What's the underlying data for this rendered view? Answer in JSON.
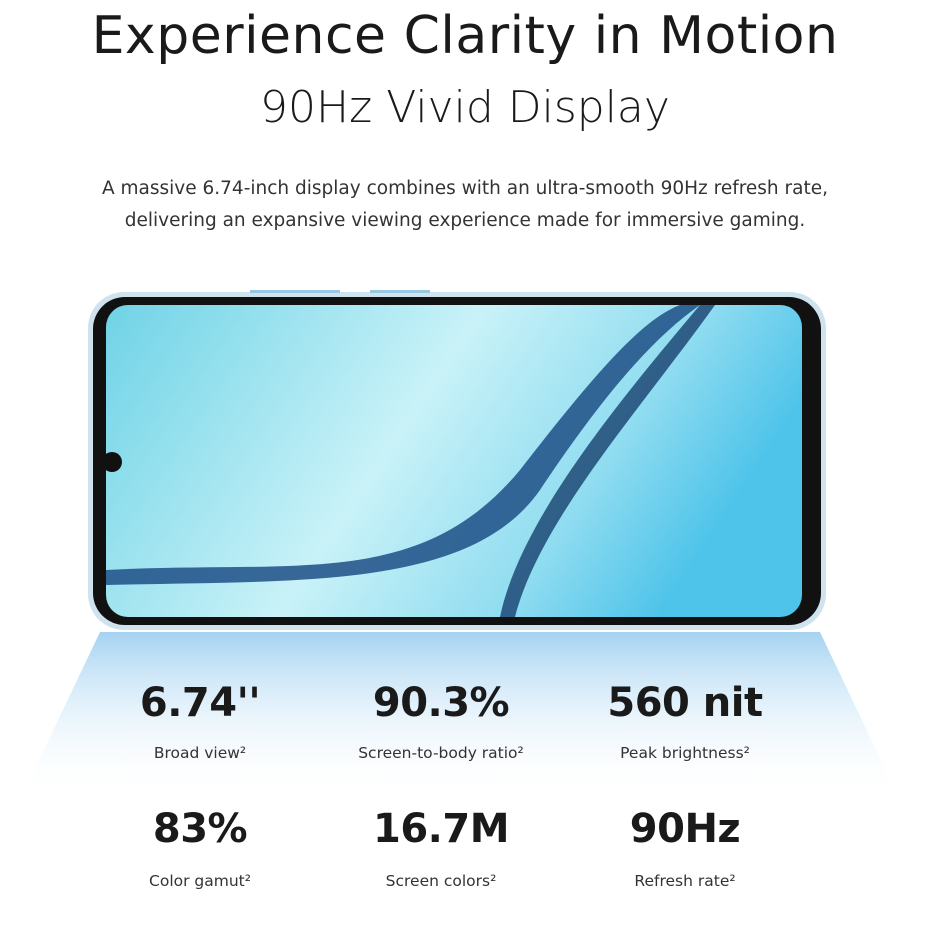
{
  "header": {
    "title": "Experience Clarity in Motion",
    "subtitle": "90Hz Vivid Display"
  },
  "description": {
    "lines": [
      "A massive 6.74-inch display combines with an ultra-smooth 90Hz refresh rate,",
      "delivering an expansive viewing experience made for immersive gaming."
    ]
  },
  "specs": [
    {
      "value": "6.74''",
      "label": "Broad view²"
    },
    {
      "value": "90.3%",
      "label": "Screen-to-body ratio²"
    },
    {
      "value": "560 nit",
      "label": "Peak brightness²"
    },
    {
      "value": "83%",
      "label": "Color gamut²"
    },
    {
      "value": "16.7M",
      "label": "Screen colors²"
    },
    {
      "value": "90Hz",
      "label": "Refresh rate²"
    }
  ]
}
